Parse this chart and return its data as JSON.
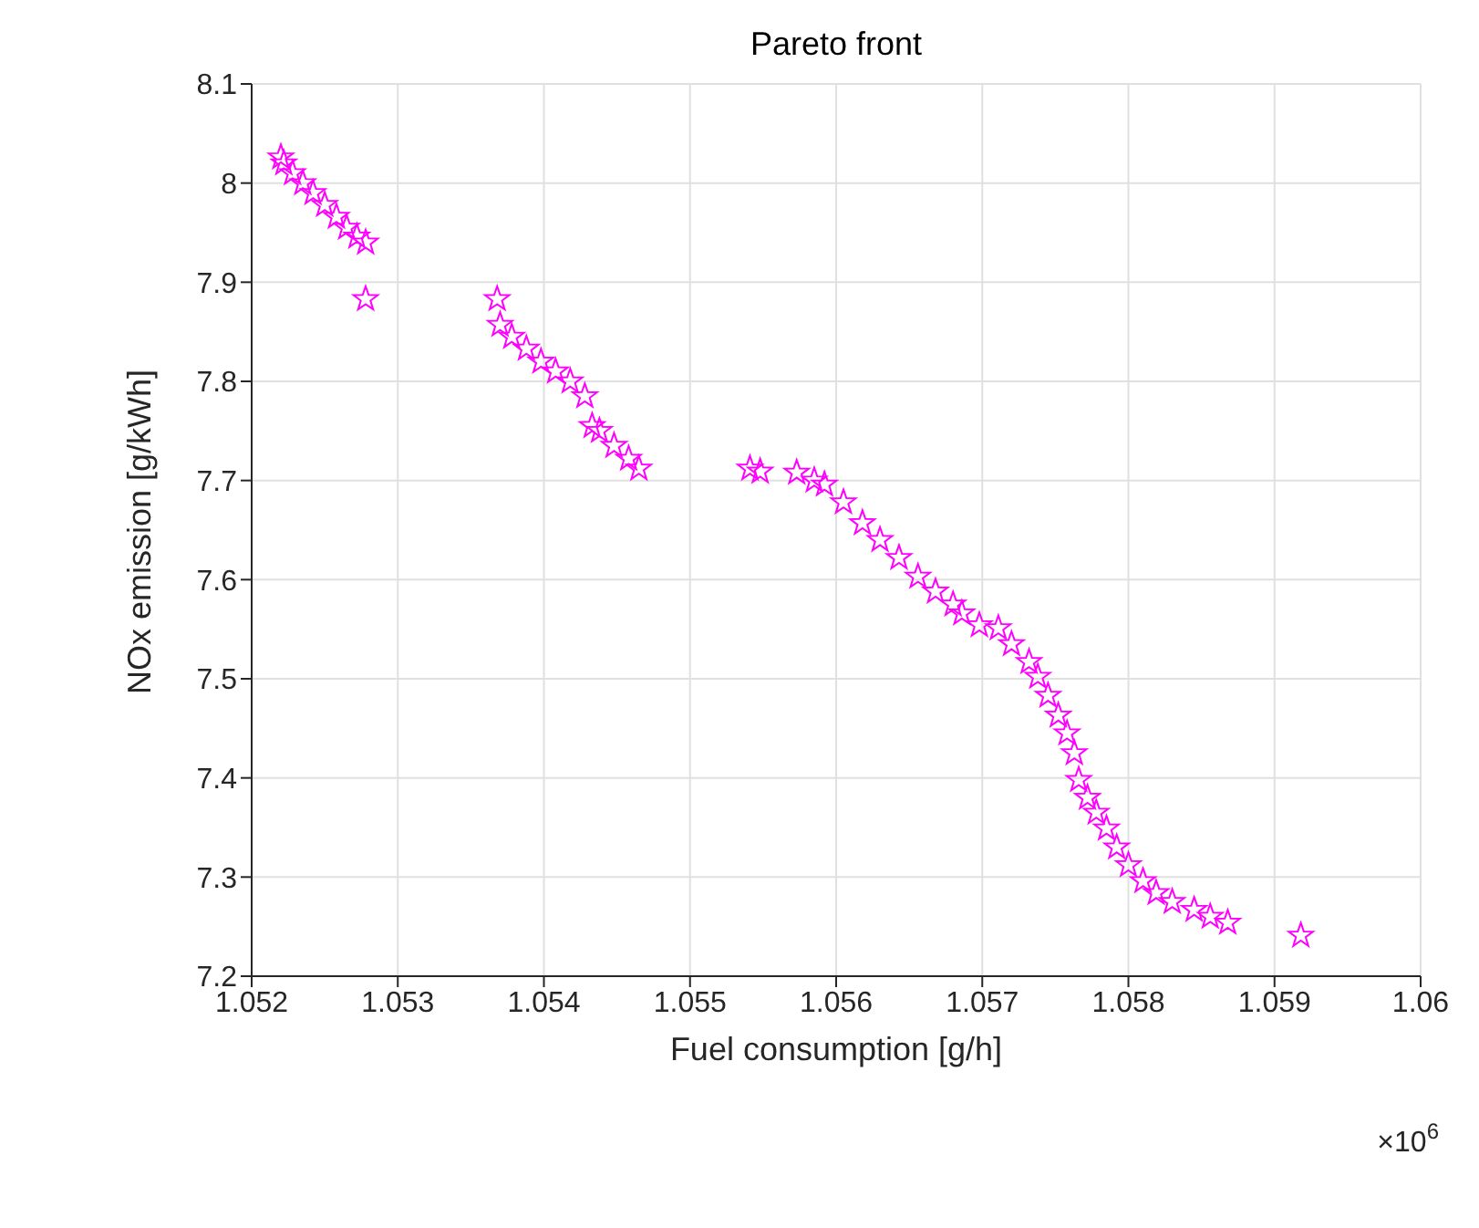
{
  "chart_data": {
    "type": "scatter",
    "title": "Pareto front",
    "xlabel": "Fuel consumption [g/h]",
    "ylabel": "NOx emission [g/kWh]",
    "annotations": [
      "×10$^{6}$"
    ],
    "x": [
      1.0522,
      1.05222,
      1.05228,
      1.05235,
      1.05242,
      1.0525,
      1.05258,
      1.05265,
      1.05272,
      1.05278,
      1.05278,
      1.05368,
      1.0537,
      1.05378,
      1.05388,
      1.05398,
      1.05408,
      1.05418,
      1.05428,
      1.05433,
      1.05438,
      1.05448,
      1.05458,
      1.05465,
      1.05541,
      1.05548,
      1.05573,
      1.05585,
      1.05592,
      1.05605,
      1.05618,
      1.0563,
      1.05643,
      1.05656,
      1.05668,
      1.0568,
      1.05686,
      1.05698,
      1.05711,
      1.0572,
      1.05732,
      1.05738,
      1.05745,
      1.05752,
      1.05758,
      1.05763,
      1.05766,
      1.05772,
      1.05778,
      1.05785,
      1.05792,
      1.058,
      1.0581,
      1.05819,
      1.0583,
      1.05845,
      1.05856,
      1.05868,
      1.05918
    ],
    "values": [
      8.026,
      8.02,
      8.01,
      8.0,
      7.99,
      7.978,
      7.966,
      7.955,
      7.946,
      7.94,
      7.883,
      7.883,
      7.857,
      7.845,
      7.833,
      7.82,
      7.81,
      7.8,
      7.785,
      7.755,
      7.75,
      7.735,
      7.722,
      7.712,
      7.712,
      7.709,
      7.708,
      7.7,
      7.696,
      7.678,
      7.657,
      7.64,
      7.622,
      7.603,
      7.588,
      7.575,
      7.566,
      7.554,
      7.551,
      7.535,
      7.517,
      7.502,
      7.483,
      7.463,
      7.445,
      7.425,
      7.398,
      7.38,
      7.365,
      7.349,
      7.33,
      7.312,
      7.296,
      7.284,
      7.275,
      7.267,
      7.26,
      7.254,
      7.241
    ],
    "color": "#ff00ff",
    "marker": "star",
    "xlim": [
      1.052,
      1.06
    ],
    "xticks": [
      1.052,
      1.053,
      1.054,
      1.055,
      1.056,
      1.057,
      1.058,
      1.059,
      1.06
    ],
    "ylim": [
      7.2,
      8.1
    ],
    "yticks": [
      7.2,
      7.3,
      7.4,
      7.5,
      7.6,
      7.7,
      7.8,
      7.9,
      8,
      8.1
    ],
    "grid": true
  }
}
